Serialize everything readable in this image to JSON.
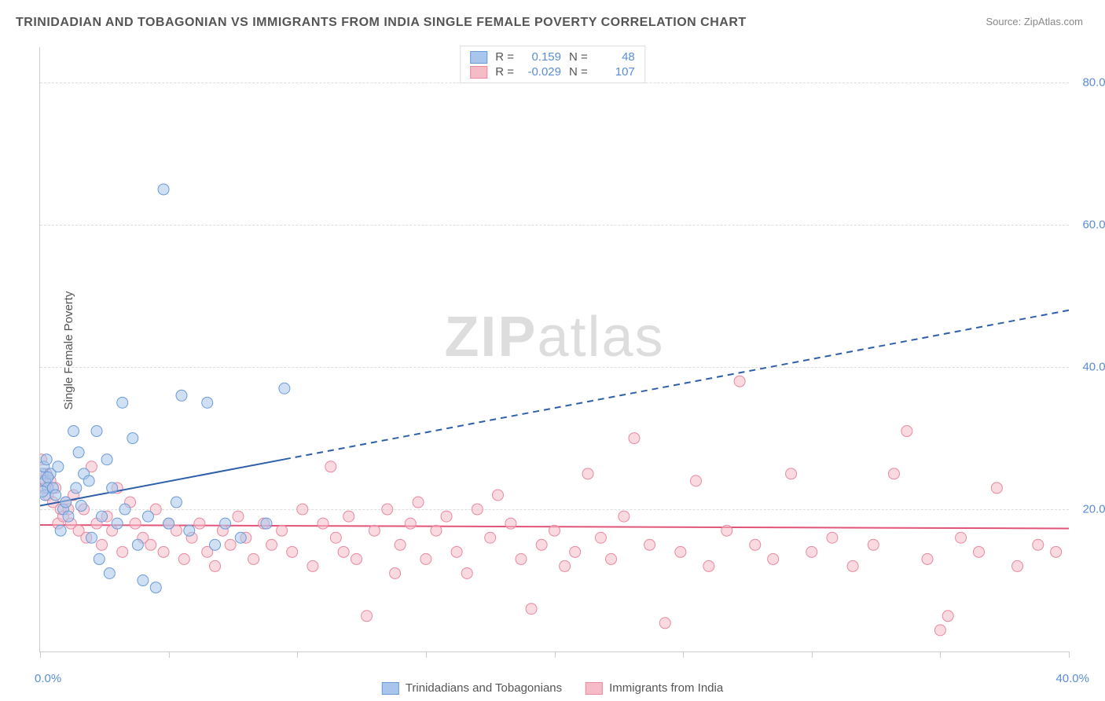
{
  "title": "TRINIDADIAN AND TOBAGONIAN VS IMMIGRANTS FROM INDIA SINGLE FEMALE POVERTY CORRELATION CHART",
  "source": "Source: ZipAtlas.com",
  "ylabel": "Single Female Poverty",
  "watermark_bold": "ZIP",
  "watermark_rest": "atlas",
  "chart": {
    "type": "scatter",
    "xlim": [
      0,
      40
    ],
    "ylim": [
      0,
      85
    ],
    "xtick_positions": [
      0,
      5,
      10,
      15,
      20,
      25,
      30,
      35,
      40
    ],
    "xtick_labels": {
      "0": "0.0%",
      "40": "40.0%"
    },
    "ytick_positions": [
      20,
      40,
      60,
      80
    ],
    "ytick_labels": [
      "20.0%",
      "40.0%",
      "60.0%",
      "80.0%"
    ],
    "grid_color": "#dddddd",
    "background_color": "#ffffff",
    "axis_color": "#cccccc",
    "tick_label_color": "#5b8dd6",
    "series": [
      {
        "name": "Trinidadians and Tobagonians",
        "color_fill": "#a8c6ec",
        "color_stroke": "#6b9bd6",
        "marker_radius": 7,
        "fill_opacity": 0.55,
        "R": "0.159",
        "N": "48",
        "trend": {
          "x1": 0,
          "y1": 20.5,
          "x2": 40,
          "y2": 48,
          "solid_until_x": 9.5,
          "color": "#2e5fa8",
          "width": 2
        },
        "points": [
          [
            0.1,
            25
          ],
          [
            0.2,
            24
          ],
          [
            0.15,
            26
          ],
          [
            0.3,
            23
          ],
          [
            0.2,
            22
          ],
          [
            0.25,
            27
          ],
          [
            0.1,
            22.5
          ],
          [
            0.4,
            25
          ],
          [
            0.3,
            24.5
          ],
          [
            0.5,
            23
          ],
          [
            0.6,
            22
          ],
          [
            0.7,
            26
          ],
          [
            0.8,
            17
          ],
          [
            0.9,
            20
          ],
          [
            1.0,
            21
          ],
          [
            1.1,
            19
          ],
          [
            1.3,
            31
          ],
          [
            1.4,
            23
          ],
          [
            1.5,
            28
          ],
          [
            1.6,
            20.5
          ],
          [
            1.7,
            25
          ],
          [
            1.9,
            24
          ],
          [
            2.0,
            16
          ],
          [
            2.2,
            31
          ],
          [
            2.3,
            13
          ],
          [
            2.4,
            19
          ],
          [
            2.6,
            27
          ],
          [
            2.7,
            11
          ],
          [
            2.8,
            23
          ],
          [
            3.0,
            18
          ],
          [
            3.2,
            35
          ],
          [
            3.3,
            20
          ],
          [
            3.6,
            30
          ],
          [
            3.8,
            15
          ],
          [
            4.0,
            10
          ],
          [
            4.2,
            19
          ],
          [
            4.5,
            9
          ],
          [
            4.8,
            65
          ],
          [
            5.0,
            18
          ],
          [
            5.3,
            21
          ],
          [
            5.5,
            36
          ],
          [
            5.8,
            17
          ],
          [
            6.5,
            35
          ],
          [
            6.8,
            15
          ],
          [
            7.2,
            18
          ],
          [
            7.8,
            16
          ],
          [
            8.8,
            18
          ],
          [
            9.5,
            37
          ]
        ]
      },
      {
        "name": "Immigrants from India",
        "color_fill": "#f5bcc8",
        "color_stroke": "#e889a0",
        "marker_radius": 7,
        "fill_opacity": 0.55,
        "R": "-0.029",
        "N": "107",
        "trend": {
          "x1": 0,
          "y1": 17.8,
          "x2": 40,
          "y2": 17.3,
          "solid_until_x": 40,
          "color": "#e25578",
          "width": 2
        },
        "points": [
          [
            0.05,
            27
          ],
          [
            0.1,
            24
          ],
          [
            0.2,
            23
          ],
          [
            0.25,
            25
          ],
          [
            0.3,
            22
          ],
          [
            0.4,
            24
          ],
          [
            0.5,
            21
          ],
          [
            0.6,
            23
          ],
          [
            0.7,
            18
          ],
          [
            0.8,
            20
          ],
          [
            0.9,
            19
          ],
          [
            1.0,
            21
          ],
          [
            1.1,
            20
          ],
          [
            1.2,
            18
          ],
          [
            1.3,
            22
          ],
          [
            1.5,
            17
          ],
          [
            1.7,
            20
          ],
          [
            1.8,
            16
          ],
          [
            2.0,
            26
          ],
          [
            2.2,
            18
          ],
          [
            2.4,
            15
          ],
          [
            2.6,
            19
          ],
          [
            2.8,
            17
          ],
          [
            3.0,
            23
          ],
          [
            3.2,
            14
          ],
          [
            3.5,
            21
          ],
          [
            3.7,
            18
          ],
          [
            4.0,
            16
          ],
          [
            4.3,
            15
          ],
          [
            4.5,
            20
          ],
          [
            4.8,
            14
          ],
          [
            5.0,
            18
          ],
          [
            5.3,
            17
          ],
          [
            5.6,
            13
          ],
          [
            5.9,
            16
          ],
          [
            6.2,
            18
          ],
          [
            6.5,
            14
          ],
          [
            6.8,
            12
          ],
          [
            7.1,
            17
          ],
          [
            7.4,
            15
          ],
          [
            7.7,
            19
          ],
          [
            8.0,
            16
          ],
          [
            8.3,
            13
          ],
          [
            8.7,
            18
          ],
          [
            9.0,
            15
          ],
          [
            9.4,
            17
          ],
          [
            9.8,
            14
          ],
          [
            10.2,
            20
          ],
          [
            10.6,
            12
          ],
          [
            11.0,
            18
          ],
          [
            11.3,
            26
          ],
          [
            11.5,
            16
          ],
          [
            11.8,
            14
          ],
          [
            12.0,
            19
          ],
          [
            12.3,
            13
          ],
          [
            12.7,
            5
          ],
          [
            13.0,
            17
          ],
          [
            13.5,
            20
          ],
          [
            13.8,
            11
          ],
          [
            14.0,
            15
          ],
          [
            14.4,
            18
          ],
          [
            14.7,
            21
          ],
          [
            15.0,
            13
          ],
          [
            15.4,
            17
          ],
          [
            15.8,
            19
          ],
          [
            16.2,
            14
          ],
          [
            16.6,
            11
          ],
          [
            17.0,
            20
          ],
          [
            17.5,
            16
          ],
          [
            17.8,
            22
          ],
          [
            18.3,
            18
          ],
          [
            18.7,
            13
          ],
          [
            19.1,
            6
          ],
          [
            19.5,
            15
          ],
          [
            20.0,
            17
          ],
          [
            20.4,
            12
          ],
          [
            20.8,
            14
          ],
          [
            21.3,
            25
          ],
          [
            21.8,
            16
          ],
          [
            22.2,
            13
          ],
          [
            22.7,
            19
          ],
          [
            23.1,
            30
          ],
          [
            23.7,
            15
          ],
          [
            24.3,
            4
          ],
          [
            24.9,
            14
          ],
          [
            25.5,
            24
          ],
          [
            26.0,
            12
          ],
          [
            26.7,
            17
          ],
          [
            27.2,
            38
          ],
          [
            27.8,
            15
          ],
          [
            28.5,
            13
          ],
          [
            29.2,
            25
          ],
          [
            30.0,
            14
          ],
          [
            30.8,
            16
          ],
          [
            31.6,
            12
          ],
          [
            32.4,
            15
          ],
          [
            33.2,
            25
          ],
          [
            33.7,
            31
          ],
          [
            34.5,
            13
          ],
          [
            35.0,
            3
          ],
          [
            35.3,
            5
          ],
          [
            35.8,
            16
          ],
          [
            36.5,
            14
          ],
          [
            37.2,
            23
          ],
          [
            38.0,
            12
          ],
          [
            38.8,
            15
          ],
          [
            39.5,
            14
          ]
        ]
      }
    ]
  },
  "legend_bottom": [
    {
      "label": "Trinidadians and Tobagonians",
      "fill": "#a8c6ec",
      "stroke": "#6b9bd6"
    },
    {
      "label": "Immigrants from India",
      "fill": "#f5bcc8",
      "stroke": "#e889a0"
    }
  ]
}
